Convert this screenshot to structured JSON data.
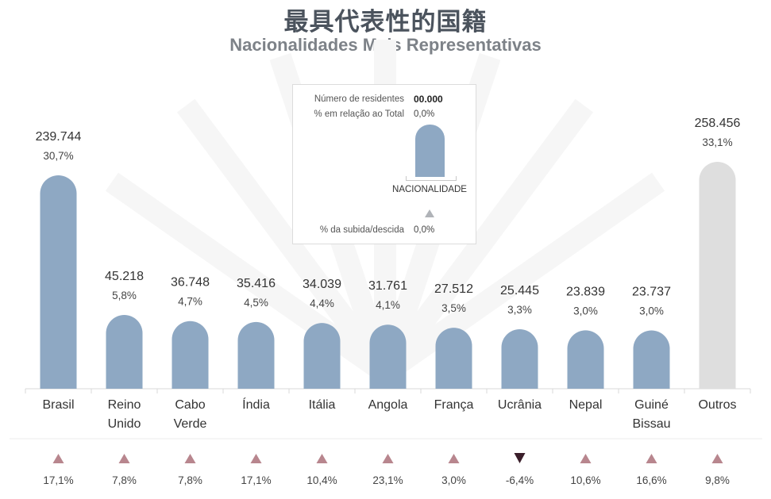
{
  "title_cn": "最具代表性的国籍",
  "title_pt": "Nacionalidades Mais Representativas",
  "legend": {
    "residents_label": "Número de residentes",
    "residents_value": "00.000",
    "percent_label": "% em relação ao Total",
    "percent_value": "0,0%",
    "nationality_label": "NACIONALIDADE",
    "change_label": "% da subida/descida",
    "change_value": "0,0%"
  },
  "colors": {
    "bar": "#8ea8c3",
    "bar_other": "#dedede",
    "up_arrow": "#b8868e",
    "down_arrow": "#3a1e2a"
  },
  "chart_data": {
    "type": "bar",
    "categories": [
      [
        "Brasil"
      ],
      [
        "Reino",
        "Unido"
      ],
      [
        "Cabo",
        "Verde"
      ],
      [
        "Índia"
      ],
      [
        "Itália"
      ],
      [
        "Angola"
      ],
      [
        "França"
      ],
      [
        "Ucrânia"
      ],
      [
        "Nepal"
      ],
      [
        "Guiné",
        "Bissau"
      ],
      [
        "Outros"
      ]
    ],
    "values": [
      239744,
      45218,
      36748,
      35416,
      34039,
      31761,
      27512,
      25445,
      23839,
      23737,
      258456
    ],
    "value_labels": [
      "239.744",
      "45.218",
      "36.748",
      "35.416",
      "34.039",
      "31.761",
      "27.512",
      "25.445",
      "23.839",
      "23.737",
      "258.456"
    ],
    "percent_labels": [
      "30,7%",
      "5,8%",
      "4,7%",
      "4,5%",
      "4,4%",
      "4,1%",
      "3,5%",
      "3,3%",
      "3,0%",
      "3,0%",
      "33,1%"
    ],
    "change_values": [
      17.1,
      7.8,
      7.8,
      17.1,
      10.4,
      23.1,
      3.0,
      -6.4,
      10.6,
      16.6,
      9.8
    ],
    "change_labels": [
      "17,1%",
      "7,8%",
      "7,8%",
      "17,1%",
      "10,4%",
      "23,1%",
      "3,0%",
      "-6,4%",
      "10,6%",
      "16,6%",
      "9,8%"
    ],
    "grid": false
  }
}
